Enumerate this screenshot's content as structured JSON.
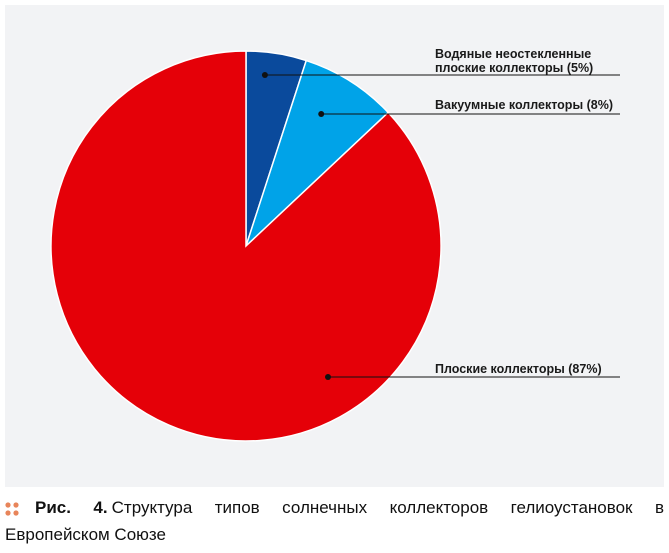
{
  "chart_data": {
    "type": "pie",
    "title": "",
    "slices": [
      {
        "label_lines": [
          "Водяные неостекленные",
          "плоские коллекторы (5%)"
        ],
        "value": 5,
        "color": "#0a4a9c"
      },
      {
        "label_lines": [
          "Вакуумные коллекторы (8%)"
        ],
        "value": 8,
        "color": "#00a3e8"
      },
      {
        "label_lines": [
          "Плоские коллекторы (87%)"
        ],
        "value": 87,
        "color": "#e50008"
      }
    ],
    "start_angle_deg": 0,
    "direction": "clockwise",
    "legend": "none"
  },
  "caption": {
    "bullet_color": "#e8855a",
    "figure_number": "Рис. 4.",
    "text": "Структура типов солнечных коллекторов гелиоустановок в Европейском Союзе"
  }
}
